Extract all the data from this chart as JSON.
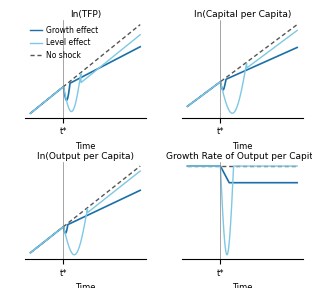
{
  "titles": [
    "ln(TFP)",
    "ln(Capital per Capita)",
    "ln(Output per Capita)",
    "Growth Rate of Output per Capita"
  ],
  "xlabel": "Time",
  "t_shock": 0.3,
  "colors": {
    "growth": "#1a6fa8",
    "level": "#7ec8e3",
    "no_shock": "#555555"
  },
  "legend_labels": [
    "Growth effect",
    "Level effect",
    "No shock"
  ],
  "title_fontsize": 6.5,
  "label_fontsize": 6,
  "legend_fontsize": 5.5
}
